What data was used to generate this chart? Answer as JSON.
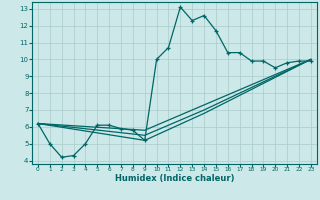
{
  "xlabel": "Humidex (Indice chaleur)",
  "background_color": "#cce8e8",
  "grid_color": "#aacccc",
  "line_color": "#006666",
  "xlim": [
    -0.5,
    23.5
  ],
  "ylim": [
    3.8,
    13.4
  ],
  "xticks": [
    0,
    1,
    2,
    3,
    4,
    5,
    6,
    7,
    8,
    9,
    10,
    11,
    12,
    13,
    14,
    15,
    16,
    17,
    18,
    19,
    20,
    21,
    22,
    23
  ],
  "yticks": [
    4,
    5,
    6,
    7,
    8,
    9,
    10,
    11,
    12,
    13
  ],
  "main_x": [
    0,
    1,
    2,
    3,
    4,
    5,
    6,
    7,
    8,
    9,
    10,
    11,
    12,
    13,
    14,
    15,
    16,
    17,
    18,
    19,
    20,
    21,
    22,
    23
  ],
  "main_y": [
    6.2,
    5.0,
    4.2,
    4.3,
    5.0,
    6.1,
    6.1,
    5.9,
    5.8,
    5.2,
    10.0,
    10.7,
    13.1,
    12.3,
    12.6,
    11.7,
    10.4,
    10.4,
    9.9,
    9.9,
    9.5,
    9.8,
    9.9,
    9.9
  ],
  "trend1_x": [
    0,
    9,
    14,
    23
  ],
  "trend1_y": [
    6.2,
    5.8,
    7.3,
    10.0
  ],
  "trend2_x": [
    0,
    9,
    14,
    23
  ],
  "trend2_y": [
    6.2,
    5.5,
    7.0,
    10.0
  ],
  "trend3_x": [
    0,
    9,
    14,
    23
  ],
  "trend3_y": [
    6.2,
    5.2,
    6.8,
    10.0
  ]
}
